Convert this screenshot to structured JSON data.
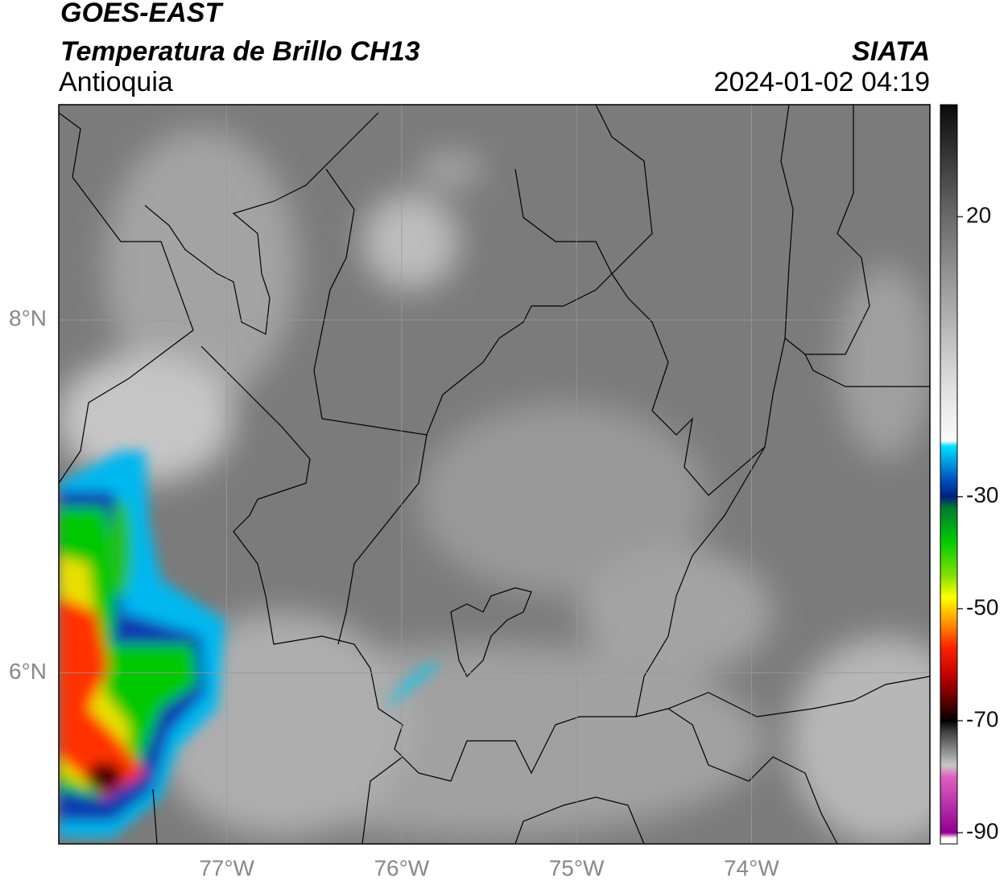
{
  "header": {
    "satellite": "GOES-EAST",
    "product": "Temperatura de Brillo CH13",
    "region": "Antioquia",
    "source": "SIATA",
    "timestamp": "2024-01-02 04:19"
  },
  "map": {
    "xlim": [
      -77.96,
      -72.98
    ],
    "ylim": [
      5.03,
      9.22
    ],
    "xticks": [
      {
        "value": -77,
        "label": "77°W"
      },
      {
        "value": -76,
        "label": "76°W"
      },
      {
        "value": -75,
        "label": "75°W"
      },
      {
        "value": -74,
        "label": "74°W"
      }
    ],
    "yticks": [
      {
        "value": 8,
        "label": "8°N"
      },
      {
        "value": 6,
        "label": "6°N"
      }
    ],
    "grid": true
  },
  "colorbar": {
    "lim": [
      -92,
      40
    ],
    "ticks": [
      20,
      -30,
      -50,
      -70,
      -90
    ],
    "stops": [
      {
        "value": 40,
        "color": "#0a0a0a"
      },
      {
        "value": 30,
        "color": "#3a3a3a"
      },
      {
        "value": 20,
        "color": "#6a6a6a"
      },
      {
        "value": 10,
        "color": "#929292"
      },
      {
        "value": 0,
        "color": "#b8b8b8"
      },
      {
        "value": -10,
        "color": "#dedede"
      },
      {
        "value": -20,
        "color": "#fafafa"
      },
      {
        "value": -21,
        "color": "#00e0ff"
      },
      {
        "value": -27,
        "color": "#0050c0"
      },
      {
        "value": -30,
        "color": "#002080"
      },
      {
        "value": -32,
        "color": "#007a30"
      },
      {
        "value": -38,
        "color": "#00cc00"
      },
      {
        "value": -44,
        "color": "#80e000"
      },
      {
        "value": -48,
        "color": "#ffff00"
      },
      {
        "value": -52,
        "color": "#ffa000"
      },
      {
        "value": -57,
        "color": "#ff2000"
      },
      {
        "value": -62,
        "color": "#c00000"
      },
      {
        "value": -67,
        "color": "#500000"
      },
      {
        "value": -70,
        "color": "#000000"
      },
      {
        "value": -72,
        "color": "#404040"
      },
      {
        "value": -78,
        "color": "#c8c8c8"
      },
      {
        "value": -80,
        "color": "#e060c0"
      },
      {
        "value": -90,
        "color": "#900090"
      },
      {
        "value": -91,
        "color": "#ffffff"
      },
      {
        "value": -92,
        "color": "#ffffff"
      }
    ]
  }
}
